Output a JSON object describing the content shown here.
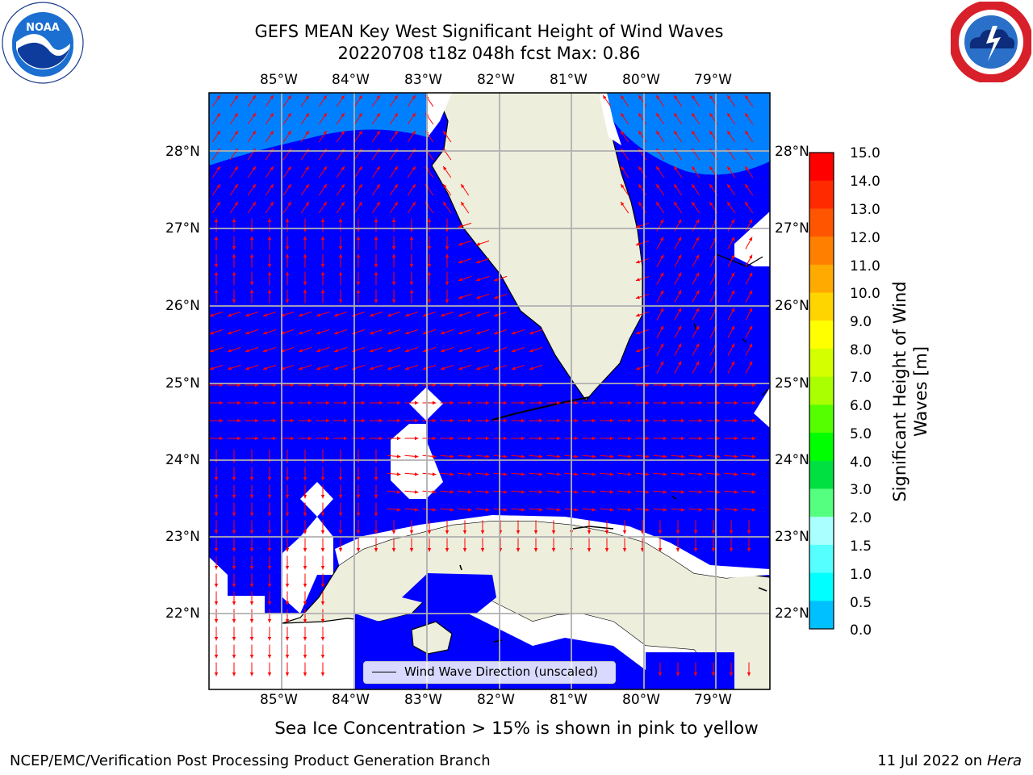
{
  "header": {
    "title_line1": "GEFS MEAN Key West Significant Height of Wind Waves",
    "title_line2": "20220708 t18z 048h fcst   Max: 0.86"
  },
  "logos": {
    "left": {
      "name": "noaa-logo",
      "text": "NOAA",
      "ring_text": "NATIONAL OCEANIC AND ATMOSPHERIC ADMINISTRATION · U.S. DEPARTMENT OF COMMERCE"
    },
    "right": {
      "name": "nws-logo",
      "ring_text": "NATIONAL WEATHER SERVICE"
    }
  },
  "map": {
    "lon_ticks": [
      "85°W",
      "84°W",
      "83°W",
      "82°W",
      "81°W",
      "80°W",
      "79°W"
    ],
    "lat_ticks": [
      "28°N",
      "27°N",
      "26°N",
      "25°N",
      "24°N",
      "23°N",
      "22°N"
    ],
    "extent": {
      "lon": [
        -86.0,
        -78.3
      ],
      "lat": [
        21.0,
        28.75
      ]
    },
    "colors": {
      "ocean_low": "#0000ff",
      "ocean_mid": "#0080ff",
      "land": "#eeeedd",
      "no_data": "#ffffff",
      "arrow": "#ff0000",
      "grid": "#b0b0b0"
    },
    "legend_label": "Wind Wave Direction (unscaled)"
  },
  "colorbar": {
    "label_line1": "Significant Height of Wind",
    "label_line2": "Waves [m]",
    "ticks": [
      "15.0",
      "14.0",
      "13.0",
      "12.0",
      "11.0",
      "10.0",
      "9.0",
      "8.0",
      "7.0",
      "6.0",
      "5.0",
      "4.0",
      "3.0",
      "2.0",
      "1.5",
      "1.0",
      "0.5",
      "0.0"
    ],
    "colors": [
      "#ff0000",
      "#ff2a00",
      "#ff5500",
      "#ff8000",
      "#ffaa00",
      "#ffd500",
      "#ffff00",
      "#d4ff00",
      "#aaff00",
      "#55ff00",
      "#00ff00",
      "#00e040",
      "#55ff80",
      "#aaffff",
      "#55ffff",
      "#00ffff",
      "#00c0ff",
      "#0080ff",
      "#0000ff"
    ]
  },
  "subnote": "Sea Ice Concentration > 15% is shown in pink to yellow",
  "footer": {
    "left": "NCEP/EMC/Verification Post Processing Product Generation Branch",
    "right_prefix": "11 Jul 2022 on ",
    "right_host": "Hera"
  }
}
